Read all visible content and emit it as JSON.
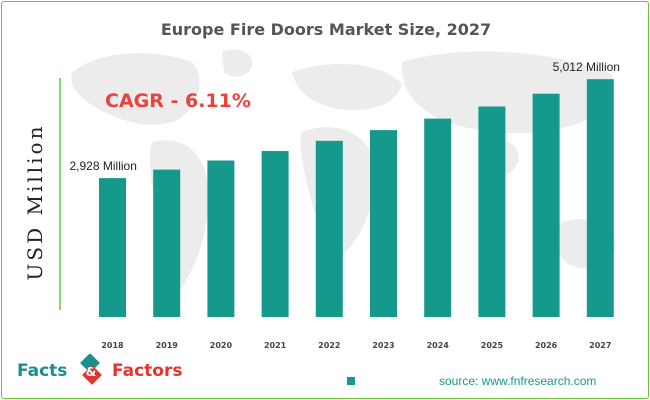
{
  "title": "Europe Fire Doors Market Size, 2027",
  "annotation": "CAGR - 6.11%",
  "logo": {
    "word1": "Facts",
    "word2": "Factors",
    "icon": "facts-factors-logo-icon"
  },
  "source": "source: www.fnfresearch.com",
  "colors": {
    "bar": "#16998d",
    "accent": "#e8433a",
    "border": "#6fbf3f",
    "map": "#eaeaea"
  },
  "chart_data": {
    "type": "bar",
    "title": "Europe Fire Doors Market Size, 2027",
    "ylabel": "USD Million",
    "xlabel": "",
    "categories": [
      "2018",
      "2019",
      "2020",
      "2021",
      "2022",
      "2023",
      "2024",
      "2025",
      "2026",
      "2027"
    ],
    "values": [
      2928,
      3107,
      3297,
      3498,
      3712,
      3939,
      4180,
      4435,
      4706,
      5012
    ],
    "value_labels": {
      "first": "2,928 Million",
      "last": "5,012 Million"
    },
    "ylim": [
      0,
      5500
    ],
    "grid": false,
    "legend": "none"
  }
}
